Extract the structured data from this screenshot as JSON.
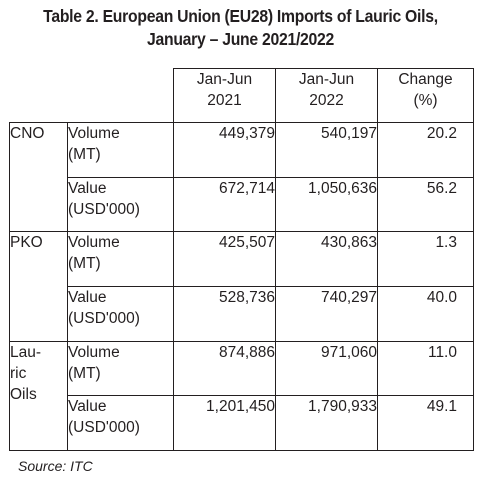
{
  "title": {
    "line1": "Table 2. European Union (EU28) Imports of Lauric Oils,",
    "line2": "January – June 2021/2022"
  },
  "table": {
    "columns": [
      {
        "line1": "Jan-Jun",
        "line2": "2021"
      },
      {
        "line1": "Jan-Jun",
        "line2": "2022"
      },
      {
        "line1": "Change",
        "line2": "(%)"
      }
    ],
    "groups": [
      {
        "label_lines": [
          "CNO"
        ],
        "rows": [
          {
            "metric_line1": "Volume",
            "metric_line2": "(MT)",
            "y2021": "449,379",
            "y2022": "540,197",
            "change": "20.2"
          },
          {
            "metric_line1": "Value",
            "metric_line2": "(USD'000)",
            "y2021": "672,714",
            "y2022": "1,050,636",
            "change": "56.2"
          }
        ]
      },
      {
        "label_lines": [
          "PKO"
        ],
        "rows": [
          {
            "metric_line1": "Volume",
            "metric_line2": "(MT)",
            "y2021": "425,507",
            "y2022": "430,863",
            "change": "1.3"
          },
          {
            "metric_line1": "Value",
            "metric_line2": "(USD'000)",
            "y2021": "528,736",
            "y2022": "740,297",
            "change": "40.0"
          }
        ]
      },
      {
        "label_lines": [
          "Lau-",
          "ric",
          "Oils"
        ],
        "rows": [
          {
            "metric_line1": "Volume",
            "metric_line2": "(MT)",
            "y2021": "874,886",
            "y2022": "971,060",
            "change": "11.0"
          },
          {
            "metric_line1": "Value",
            "metric_line2": "(USD'000)",
            "y2021": "1,201,450",
            "y2022": "1,790,933",
            "change": "49.1"
          }
        ]
      }
    ]
  },
  "source": "Source: ITC"
}
